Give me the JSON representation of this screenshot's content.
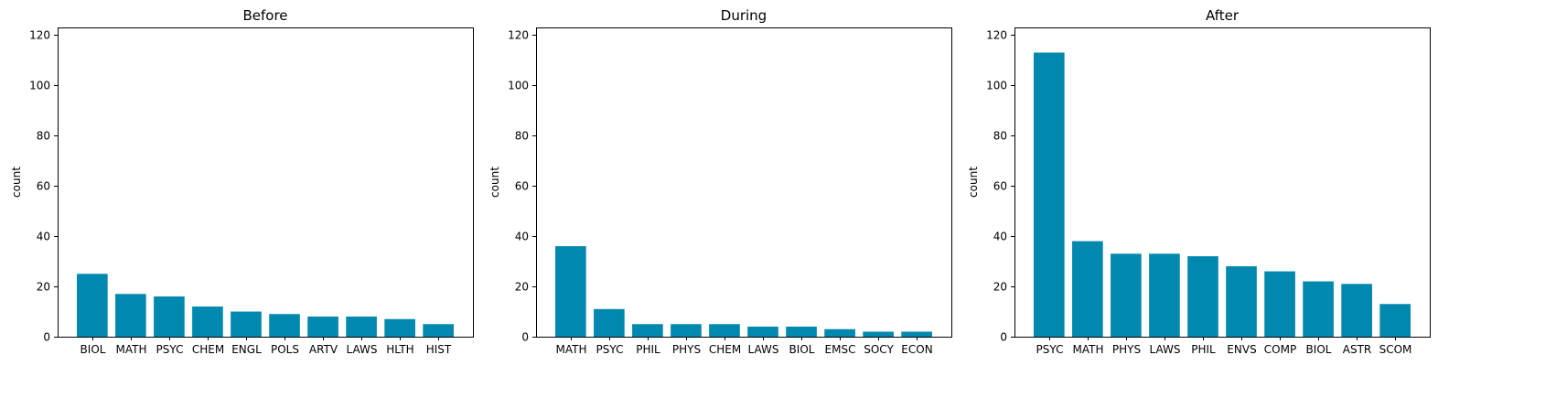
{
  "colors": {
    "bar": "#0088AF"
  },
  "chart_data": [
    {
      "type": "bar",
      "title": "Before",
      "ylabel": "count",
      "xlabel": "",
      "ylim": [
        0,
        123
      ],
      "yticks": [
        0,
        20,
        40,
        60,
        80,
        100,
        120
      ],
      "categories": [
        "BIOL",
        "MATH",
        "PSYC",
        "CHEM",
        "ENGL",
        "POLS",
        "ARTV",
        "LAWS",
        "HLTH",
        "HIST"
      ],
      "values": [
        25,
        17,
        16,
        12,
        10,
        9,
        8,
        8,
        7,
        5
      ]
    },
    {
      "type": "bar",
      "title": "During",
      "ylabel": "count",
      "xlabel": "",
      "ylim": [
        0,
        123
      ],
      "yticks": [
        0,
        20,
        40,
        60,
        80,
        100,
        120
      ],
      "categories": [
        "MATH",
        "PSYC",
        "PHIL",
        "PHYS",
        "CHEM",
        "LAWS",
        "BIOL",
        "EMSC",
        "SOCY",
        "ECON"
      ],
      "values": [
        36,
        11,
        5,
        5,
        5,
        4,
        4,
        3,
        2,
        2
      ]
    },
    {
      "type": "bar",
      "title": "After",
      "ylabel": "count",
      "xlabel": "",
      "ylim": [
        0,
        123
      ],
      "yticks": [
        0,
        20,
        40,
        60,
        80,
        100,
        120
      ],
      "categories": [
        "PSYC",
        "MATH",
        "PHYS",
        "LAWS",
        "PHIL",
        "ENVS",
        "COMP",
        "BIOL",
        "ASTR",
        "SCOM"
      ],
      "values": [
        113,
        38,
        33,
        33,
        32,
        28,
        26,
        22,
        21,
        13
      ]
    }
  ]
}
